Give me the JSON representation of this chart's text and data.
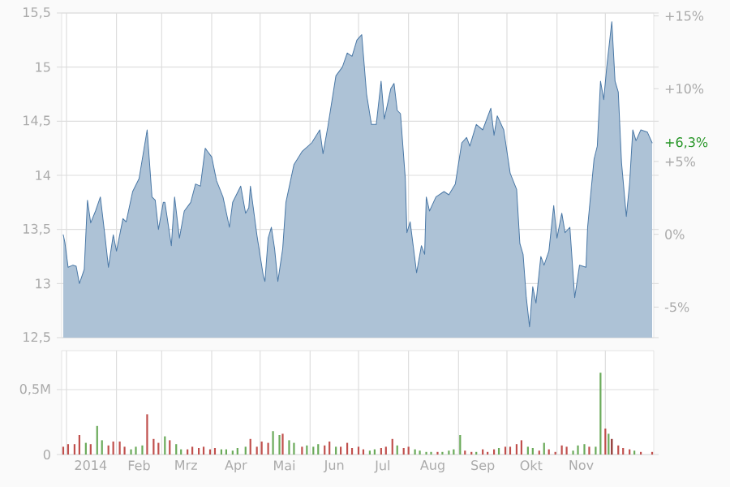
{
  "chart_data": [
    {
      "type": "area",
      "color": "#4a78a6",
      "x": [
        "2013-12-30",
        "2013-12-31",
        "2014-01-02",
        "2014-01-05",
        "2014-01-07",
        "2014-01-09",
        "2014-01-12",
        "2014-01-14",
        "2014-01-16",
        "2014-01-19",
        "2014-01-22",
        "2014-01-25",
        "2014-01-27",
        "2014-01-30",
        "2014-02-01",
        "2014-02-05",
        "2014-02-07",
        "2014-02-11",
        "2014-02-15",
        "2014-02-20",
        "2014-02-23",
        "2014-02-25",
        "2014-02-27",
        "2014-03-02",
        "2014-03-03",
        "2014-03-07",
        "2014-03-09",
        "2014-03-12",
        "2014-03-15",
        "2014-03-19",
        "2014-03-22",
        "2014-03-25",
        "2014-03-28",
        "2014-04-01",
        "2014-04-04",
        "2014-04-08",
        "2014-04-12",
        "2014-04-14",
        "2014-04-19",
        "2014-04-22",
        "2014-04-24",
        "2014-04-25",
        "2014-04-29",
        "2014-05-03",
        "2014-05-04",
        "2014-05-06",
        "2014-05-08",
        "2014-05-10",
        "2014-05-12",
        "2014-05-15",
        "2014-05-17",
        "2014-05-22",
        "2014-05-27",
        "2014-06-02",
        "2014-06-07",
        "2014-06-09",
        "2014-06-12",
        "2014-06-17",
        "2014-06-21",
        "2014-06-24",
        "2014-06-27",
        "2014-06-30",
        "2014-07-03",
        "2014-07-06",
        "2014-07-09",
        "2014-07-12",
        "2014-07-15",
        "2014-07-17",
        "2014-07-21",
        "2014-07-23",
        "2014-07-25",
        "2014-07-27",
        "2014-07-30",
        "2014-07-31",
        "2014-08-02",
        "2014-08-06",
        "2014-08-09",
        "2014-08-11",
        "2014-08-12",
        "2014-08-14",
        "2014-08-18",
        "2014-08-23",
        "2014-08-26",
        "2014-08-30",
        "2014-09-03",
        "2014-09-06",
        "2014-09-08",
        "2014-09-12",
        "2014-09-16",
        "2014-09-21",
        "2014-09-23",
        "2014-09-25",
        "2014-09-29",
        "2014-10-03",
        "2014-10-07",
        "2014-10-09",
        "2014-10-11",
        "2014-10-13",
        "2014-10-15",
        "2014-10-17",
        "2014-10-19",
        "2014-10-22",
        "2014-10-24",
        "2014-10-27",
        "2014-10-30",
        "2014-11-01",
        "2014-11-04",
        "2014-11-06",
        "2014-11-09",
        "2014-11-12",
        "2014-11-15",
        "2014-11-19",
        "2014-11-20",
        "2014-11-24",
        "2014-11-26",
        "2014-11-28",
        "2014-11-30",
        "2014-12-02",
        "2014-12-05",
        "2014-12-07",
        "2014-12-09",
        "2014-12-11",
        "2014-12-14",
        "2014-12-16",
        "2014-12-18",
        "2014-12-20",
        "2014-12-23",
        "2014-12-27",
        "2014-12-30"
      ],
      "values": [
        13.45,
        13.38,
        13.15,
        13.17,
        13.16,
        13.0,
        13.13,
        13.77,
        13.56,
        13.67,
        13.8,
        13.42,
        13.15,
        13.45,
        13.3,
        13.6,
        13.57,
        13.85,
        13.97,
        14.42,
        13.8,
        13.77,
        13.5,
        13.75,
        13.75,
        13.35,
        13.8,
        13.42,
        13.67,
        13.75,
        13.92,
        13.9,
        14.25,
        14.17,
        13.95,
        13.8,
        13.52,
        13.75,
        13.9,
        13.65,
        13.7,
        13.9,
        13.45,
        13.07,
        13.02,
        13.42,
        13.52,
        13.32,
        13.02,
        13.32,
        13.75,
        14.1,
        14.22,
        14.3,
        14.42,
        14.2,
        14.45,
        14.92,
        15.0,
        15.13,
        15.1,
        15.25,
        15.3,
        14.75,
        14.47,
        14.47,
        14.87,
        14.52,
        14.8,
        14.85,
        14.6,
        14.57,
        13.97,
        13.47,
        13.57,
        13.1,
        13.35,
        13.27,
        13.8,
        13.67,
        13.8,
        13.85,
        13.82,
        13.92,
        14.3,
        14.35,
        14.27,
        14.47,
        14.42,
        14.62,
        14.37,
        14.55,
        14.42,
        14.02,
        13.87,
        13.37,
        13.27,
        12.87,
        12.6,
        12.97,
        12.82,
        13.25,
        13.17,
        13.3,
        13.72,
        13.42,
        13.65,
        13.47,
        13.52,
        12.87,
        13.17,
        13.15,
        13.52,
        14.15,
        14.27,
        14.87,
        14.7,
        15.02,
        15.42,
        14.87,
        14.77,
        14.12,
        13.62,
        13.92,
        14.42,
        14.32,
        14.42,
        14.4,
        14.3
      ],
      "xlim": [
        "2013-12-29",
        "2014-12-31"
      ],
      "xticks": [
        {
          "value": "2014-01-01",
          "label": null
        },
        {
          "value": "2014-02-01",
          "label": null
        },
        {
          "value": "2014-03-01",
          "label": null
        },
        {
          "value": "2014-04-01",
          "label": null
        },
        {
          "value": "2014-05-01",
          "label": null
        },
        {
          "value": "2014-06-01",
          "label": null
        },
        {
          "value": "2014-07-01",
          "label": null
        },
        {
          "value": "2014-08-01",
          "label": null
        },
        {
          "value": "2014-09-01",
          "label": null
        },
        {
          "value": "2014-10-01",
          "label": null
        },
        {
          "value": "2014-11-01",
          "label": null
        },
        {
          "value": "2014-12-01",
          "label": null
        }
      ],
      "ylim": [
        12.5,
        15.5
      ],
      "yticks": [
        {
          "value": 12.5,
          "label": "12,5"
        },
        13,
        {
          "value": 13.5,
          "label": "13,5"
        },
        14,
        {
          "value": 14.5,
          "label": "14,5"
        },
        15,
        {
          "value": 15.5,
          "label": "15,5"
        }
      ],
      "y2lim": [
        -7.1,
        15.2
      ],
      "y2ticks": [
        {
          "value": -5,
          "label": "-5%"
        },
        {
          "value": 0,
          "label": "0%"
        },
        {
          "value": 5,
          "label": "+5%"
        },
        {
          "value": 10,
          "label": "+10%"
        },
        {
          "value": 15,
          "label": "+15%"
        }
      ],
      "annotations": [
        {
          "text": "+6,3%",
          "x": "2014-12-30",
          "y": 14.3
        }
      ],
      "tick_labels": "y",
      "grid": true
    },
    {
      "type": "bar",
      "x": [
        "2013-12-30",
        "2014-01-02",
        "2014-01-06",
        "2014-01-09",
        "2014-01-13",
        "2014-01-16",
        "2014-01-20",
        "2014-01-23",
        "2014-01-27",
        "2014-01-30",
        "2014-02-03",
        "2014-02-06",
        "2014-02-10",
        "2014-02-13",
        "2014-02-17",
        "2014-02-20",
        "2014-02-24",
        "2014-02-27",
        "2014-03-03",
        "2014-03-06",
        "2014-03-10",
        "2014-03-13",
        "2014-03-17",
        "2014-03-20",
        "2014-03-24",
        "2014-03-27",
        "2014-03-31",
        "2014-04-03",
        "2014-04-07",
        "2014-04-10",
        "2014-04-14",
        "2014-04-17",
        "2014-04-22",
        "2014-04-25",
        "2014-04-29",
        "2014-05-02",
        "2014-05-06",
        "2014-05-09",
        "2014-05-13",
        "2014-05-15",
        "2014-05-19",
        "2014-05-22",
        "2014-05-27",
        "2014-05-30",
        "2014-06-03",
        "2014-06-06",
        "2014-06-10",
        "2014-06-13",
        "2014-06-17",
        "2014-06-20",
        "2014-06-24",
        "2014-06-27",
        "2014-07-01",
        "2014-07-04",
        "2014-07-08",
        "2014-07-11",
        "2014-07-15",
        "2014-07-18",
        "2014-07-22",
        "2014-07-25",
        "2014-07-29",
        "2014-08-01",
        "2014-08-05",
        "2014-08-08",
        "2014-08-12",
        "2014-08-15",
        "2014-08-19",
        "2014-08-22",
        "2014-08-26",
        "2014-08-29",
        "2014-09-02",
        "2014-09-05",
        "2014-09-09",
        "2014-09-12",
        "2014-09-16",
        "2014-09-19",
        "2014-09-23",
        "2014-09-26",
        "2014-09-30",
        "2014-10-03",
        "2014-10-07",
        "2014-10-10",
        "2014-10-14",
        "2014-10-17",
        "2014-10-21",
        "2014-10-24",
        "2014-10-27",
        "2014-10-31",
        "2014-11-04",
        "2014-11-07",
        "2014-11-11",
        "2014-11-14",
        "2014-11-18",
        "2014-11-21",
        "2014-11-25",
        "2014-11-28",
        "2014-12-01",
        "2014-12-03",
        "2014-12-05",
        "2014-12-09",
        "2014-12-12",
        "2014-12-16",
        "2014-12-19",
        "2014-12-23",
        "2014-12-30"
      ],
      "values": [
        60000,
        80000,
        80000,
        150000,
        90000,
        80000,
        220000,
        110000,
        70000,
        100000,
        100000,
        60000,
        40000,
        60000,
        70000,
        310000,
        120000,
        90000,
        140000,
        110000,
        80000,
        40000,
        40000,
        60000,
        50000,
        60000,
        40000,
        50000,
        40000,
        40000,
        30000,
        50000,
        60000,
        120000,
        60000,
        100000,
        90000,
        180000,
        150000,
        160000,
        110000,
        90000,
        60000,
        70000,
        60000,
        80000,
        70000,
        100000,
        60000,
        60000,
        90000,
        50000,
        60000,
        40000,
        30000,
        40000,
        50000,
        60000,
        120000,
        70000,
        50000,
        60000,
        40000,
        30000,
        20000,
        20000,
        20000,
        20000,
        30000,
        40000,
        150000,
        30000,
        20000,
        20000,
        40000,
        20000,
        40000,
        50000,
        60000,
        60000,
        80000,
        110000,
        60000,
        50000,
        30000,
        90000,
        40000,
        20000,
        70000,
        60000,
        30000,
        70000,
        80000,
        60000,
        60000,
        630000,
        200000,
        160000,
        120000,
        70000,
        50000,
        40000,
        30000,
        20000,
        20000
      ],
      "colors": [
        "#c0504d",
        "#c0504d",
        "#c0504d",
        "#c0504d",
        "#6aaa5a",
        "#c0504d",
        "#6aaa5a",
        "#6aaa5a",
        "#c0504d",
        "#c0504d",
        "#c0504d",
        "#c0504d",
        "#6aaa5a",
        "#6aaa5a",
        "#6aaa5a",
        "#c0504d",
        "#c0504d",
        "#c0504d",
        "#6aaa5a",
        "#c0504d",
        "#6aaa5a",
        "#6aaa5a",
        "#c0504d",
        "#c0504d",
        "#c0504d",
        "#c0504d",
        "#c0504d",
        "#c0504d",
        "#6aaa5a",
        "#6aaa5a",
        "#6aaa5a",
        "#6aaa5a",
        "#6aaa5a",
        "#c0504d",
        "#c0504d",
        "#c0504d",
        "#c0504d",
        "#6aaa5a",
        "#6aaa5a",
        "#c0504d",
        "#6aaa5a",
        "#6aaa5a",
        "#c0504d",
        "#6aaa5a",
        "#6aaa5a",
        "#6aaa5a",
        "#c0504d",
        "#c0504d",
        "#6aaa5a",
        "#c0504d",
        "#c0504d",
        "#c0504d",
        "#c0504d",
        "#c0504d",
        "#6aaa5a",
        "#6aaa5a",
        "#c0504d",
        "#c0504d",
        "#c0504d",
        "#6aaa5a",
        "#c0504d",
        "#c0504d",
        "#6aaa5a",
        "#6aaa5a",
        "#6aaa5a",
        "#6aaa5a",
        "#c0504d",
        "#6aaa5a",
        "#6aaa5a",
        "#6aaa5a",
        "#6aaa5a",
        "#c0504d",
        "#c0504d",
        "#6aaa5a",
        "#c0504d",
        "#c0504d",
        "#c0504d",
        "#6aaa5a",
        "#c0504d",
        "#c0504d",
        "#c0504d",
        "#c0504d",
        "#6aaa5a",
        "#6aaa5a",
        "#c0504d",
        "#6aaa5a",
        "#c0504d",
        "#c0504d",
        "#c0504d",
        "#c0504d",
        "#6aaa5a",
        "#6aaa5a",
        "#6aaa5a",
        "#c0504d",
        "#6aaa5a",
        "#6aaa5a",
        "#c0504d",
        "#6aaa5a",
        "#8b2e2b",
        "#c0504d",
        "#c0504d",
        "#c0504d",
        "#6aaa5a",
        "#c0504d",
        "#c0504d"
      ],
      "xlim": [
        "2013-12-29",
        "2014-12-31"
      ],
      "xticks": [
        {
          "value": "2014-01-01",
          "label": null
        },
        {
          "value": "2014-01-16",
          "label": "2014"
        },
        {
          "value": "2014-02-01",
          "label": null
        },
        {
          "value": "2014-02-15",
          "label": "Feb"
        },
        {
          "value": "2014-03-01",
          "label": null
        },
        {
          "value": "2014-03-16",
          "label": "Mrz"
        },
        {
          "value": "2014-04-01",
          "label": null
        },
        {
          "value": "2014-04-16",
          "label": "Apr"
        },
        {
          "value": "2014-05-01",
          "label": null
        },
        {
          "value": "2014-05-16",
          "label": "Mai"
        },
        {
          "value": "2014-06-01",
          "label": null
        },
        {
          "value": "2014-06-16",
          "label": "Jun"
        },
        {
          "value": "2014-07-01",
          "label": null
        },
        {
          "value": "2014-07-16",
          "label": "Jul"
        },
        {
          "value": "2014-08-01",
          "label": null
        },
        {
          "value": "2014-08-16",
          "label": "Aug"
        },
        {
          "value": "2014-09-01",
          "label": null
        },
        {
          "value": "2014-09-16",
          "label": "Sep"
        },
        {
          "value": "2014-10-01",
          "label": null
        },
        {
          "value": "2014-10-16",
          "label": "Okt"
        },
        {
          "value": "2014-11-01",
          "label": null
        },
        {
          "value": "2014-11-16",
          "label": "Nov"
        },
        {
          "value": "2014-12-01",
          "label": null
        }
      ],
      "ylim": [
        0,
        800000
      ],
      "yticks": [
        {
          "value": 0,
          "label": "0"
        },
        {
          "value": 500000,
          "label": "0,5M"
        }
      ],
      "grid": true
    }
  ]
}
